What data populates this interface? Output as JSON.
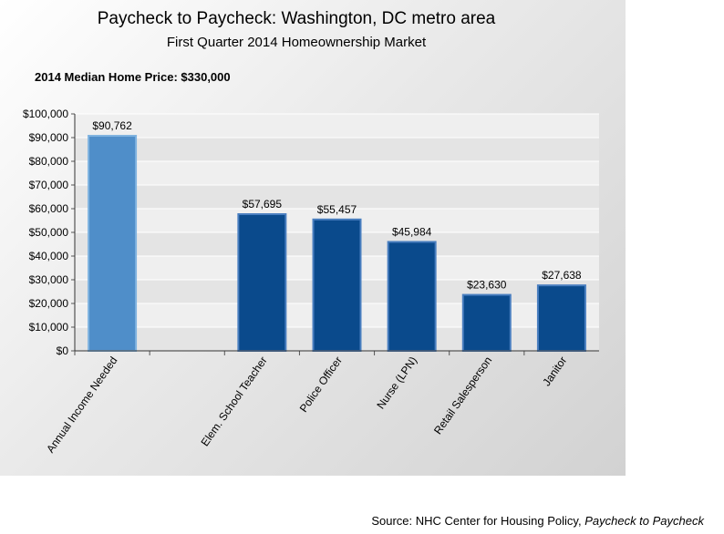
{
  "chart_data": {
    "type": "bar",
    "title": "Paycheck to Paycheck: Washington, DC metro area",
    "subtitle": "First Quarter 2014 Homeownership Market",
    "annotation": "2014 Median Home Price: $330,000",
    "categories": [
      "Annual Income Needed",
      "",
      "Elem. School Teacher",
      "Police Officer",
      "Nurse (LPN)",
      "Retail Salesperson",
      "Janitor"
    ],
    "values": [
      90762,
      null,
      57695,
      55457,
      45984,
      23630,
      27638
    ],
    "data_labels": [
      "$90,762",
      "",
      "$57,695",
      "$55,457",
      "$45,984",
      "$23,630",
      "$27,638"
    ],
    "ylim": [
      0,
      100000
    ],
    "yticks": [
      "$0",
      "$10,000",
      "$20,000",
      "$30,000",
      "$40,000",
      "$50,000",
      "$60,000",
      "$70,000",
      "$80,000",
      "$90,000",
      "$100,000"
    ],
    "grid": true,
    "legend": "none",
    "colors": {
      "highlight": "#4f8ec9",
      "highlight_border": "#7fb3e0",
      "bar": "#0a4a8c",
      "bar_border": "#4a7fc0"
    },
    "xlabel": "",
    "ylabel": ""
  },
  "source": {
    "prefix": "Source:  NHC Center for Housing Policy, ",
    "title": "Paycheck to Paycheck"
  }
}
